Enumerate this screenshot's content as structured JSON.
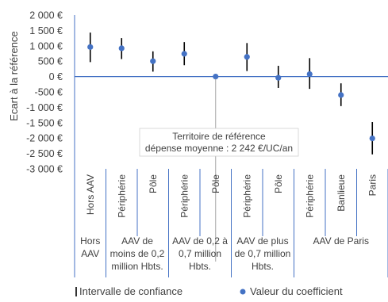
{
  "chart_data": {
    "type": "scatter",
    "title": "",
    "ylabel": "Ecart à la référence",
    "ylim": [
      -3000,
      2000
    ],
    "yticks": [
      {
        "value": 2000,
        "label": "2 000 €"
      },
      {
        "value": 1500,
        "label": "1 500 €"
      },
      {
        "value": 1000,
        "label": "1 000 €"
      },
      {
        "value": 500,
        "label": "500 €"
      },
      {
        "value": 0,
        "label": "0 €"
      },
      {
        "value": -500,
        "label": "-500 €"
      },
      {
        "value": -1000,
        "label": "-1 000 €"
      },
      {
        "value": -1500,
        "label": "-1 500 €"
      },
      {
        "value": -2000,
        "label": "-2 000 €"
      },
      {
        "value": -2500,
        "label": "-2 500 €"
      },
      {
        "value": -3000,
        "label": "-3 000 €"
      }
    ],
    "categories": [
      "Hors AAV",
      "Périphérie",
      "Pôle",
      "Périphérie",
      "Pôle",
      "Périphérie",
      "Pôle",
      "Périphérie",
      "Banlieue",
      "Paris"
    ],
    "groups": [
      {
        "label_lines": [
          "Hors",
          "AAV"
        ],
        "span": [
          0,
          0
        ]
      },
      {
        "label_lines": [
          "AAV de",
          "moins de 0,2",
          "million Hbts."
        ],
        "span": [
          1,
          2
        ]
      },
      {
        "label_lines": [
          "AAV de 0,2 à",
          "0,7 million",
          "Hbts."
        ],
        "span": [
          3,
          4
        ]
      },
      {
        "label_lines": [
          "AAV de plus",
          "de 0,7 million",
          "Hbts."
        ],
        "span": [
          5,
          6
        ]
      },
      {
        "label_lines": [
          "AAV de Paris"
        ],
        "span": [
          7,
          9
        ]
      }
    ],
    "series": [
      {
        "name": "Valeur du coefficient",
        "values": [
          960,
          920,
          500,
          740,
          0,
          640,
          -40,
          80,
          -600,
          -2010
        ]
      },
      {
        "name": "Intervalle de confiance",
        "lower": [
          470,
          570,
          160,
          370,
          0,
          180,
          -370,
          -400,
          -960,
          -2530
        ],
        "upper": [
          1430,
          1250,
          820,
          1120,
          0,
          1090,
          350,
          600,
          -220,
          -1480
        ]
      }
    ],
    "annotation": {
      "lines": [
        "Territoire de référence",
        "dépense moyenne : 2 242 €/UC/an"
      ],
      "points_to_category": 4
    },
    "legend": {
      "placement": "bottom"
    },
    "grid": false,
    "colors": {
      "point": "#4472C4",
      "errorbar": "#000000",
      "zero_line": "#4472C4",
      "separator": "#4472C4"
    }
  }
}
